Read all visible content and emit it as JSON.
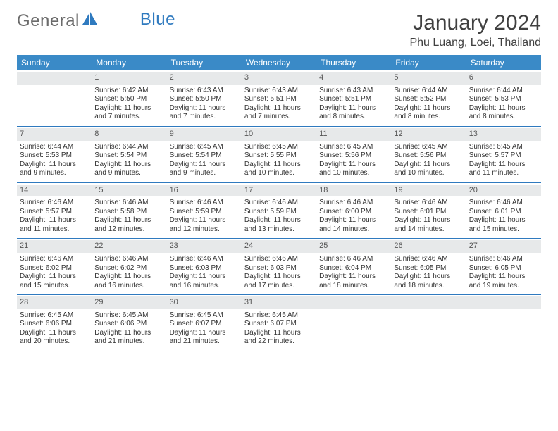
{
  "brand": {
    "part1": "General",
    "part2": "Blue"
  },
  "title": "January 2024",
  "location": "Phu Luang, Loei, Thailand",
  "colors": {
    "header_bg": "#3a8ac7",
    "rule": "#2f7abf",
    "daynum_bg": "#e7e9ea",
    "text": "#333333",
    "logo_gray": "#6b6b6b",
    "logo_blue": "#2f7abf"
  },
  "daysOfWeek": [
    "Sunday",
    "Monday",
    "Tuesday",
    "Wednesday",
    "Thursday",
    "Friday",
    "Saturday"
  ],
  "weeks": [
    [
      {
        "n": "",
        "sunrise": "",
        "sunset": "",
        "daylight": ""
      },
      {
        "n": "1",
        "sunrise": "Sunrise: 6:42 AM",
        "sunset": "Sunset: 5:50 PM",
        "daylight": "Daylight: 11 hours and 7 minutes."
      },
      {
        "n": "2",
        "sunrise": "Sunrise: 6:43 AM",
        "sunset": "Sunset: 5:50 PM",
        "daylight": "Daylight: 11 hours and 7 minutes."
      },
      {
        "n": "3",
        "sunrise": "Sunrise: 6:43 AM",
        "sunset": "Sunset: 5:51 PM",
        "daylight": "Daylight: 11 hours and 7 minutes."
      },
      {
        "n": "4",
        "sunrise": "Sunrise: 6:43 AM",
        "sunset": "Sunset: 5:51 PM",
        "daylight": "Daylight: 11 hours and 8 minutes."
      },
      {
        "n": "5",
        "sunrise": "Sunrise: 6:44 AM",
        "sunset": "Sunset: 5:52 PM",
        "daylight": "Daylight: 11 hours and 8 minutes."
      },
      {
        "n": "6",
        "sunrise": "Sunrise: 6:44 AM",
        "sunset": "Sunset: 5:53 PM",
        "daylight": "Daylight: 11 hours and 8 minutes."
      }
    ],
    [
      {
        "n": "7",
        "sunrise": "Sunrise: 6:44 AM",
        "sunset": "Sunset: 5:53 PM",
        "daylight": "Daylight: 11 hours and 9 minutes."
      },
      {
        "n": "8",
        "sunrise": "Sunrise: 6:44 AM",
        "sunset": "Sunset: 5:54 PM",
        "daylight": "Daylight: 11 hours and 9 minutes."
      },
      {
        "n": "9",
        "sunrise": "Sunrise: 6:45 AM",
        "sunset": "Sunset: 5:54 PM",
        "daylight": "Daylight: 11 hours and 9 minutes."
      },
      {
        "n": "10",
        "sunrise": "Sunrise: 6:45 AM",
        "sunset": "Sunset: 5:55 PM",
        "daylight": "Daylight: 11 hours and 10 minutes."
      },
      {
        "n": "11",
        "sunrise": "Sunrise: 6:45 AM",
        "sunset": "Sunset: 5:56 PM",
        "daylight": "Daylight: 11 hours and 10 minutes."
      },
      {
        "n": "12",
        "sunrise": "Sunrise: 6:45 AM",
        "sunset": "Sunset: 5:56 PM",
        "daylight": "Daylight: 11 hours and 10 minutes."
      },
      {
        "n": "13",
        "sunrise": "Sunrise: 6:45 AM",
        "sunset": "Sunset: 5:57 PM",
        "daylight": "Daylight: 11 hours and 11 minutes."
      }
    ],
    [
      {
        "n": "14",
        "sunrise": "Sunrise: 6:46 AM",
        "sunset": "Sunset: 5:57 PM",
        "daylight": "Daylight: 11 hours and 11 minutes."
      },
      {
        "n": "15",
        "sunrise": "Sunrise: 6:46 AM",
        "sunset": "Sunset: 5:58 PM",
        "daylight": "Daylight: 11 hours and 12 minutes."
      },
      {
        "n": "16",
        "sunrise": "Sunrise: 6:46 AM",
        "sunset": "Sunset: 5:59 PM",
        "daylight": "Daylight: 11 hours and 12 minutes."
      },
      {
        "n": "17",
        "sunrise": "Sunrise: 6:46 AM",
        "sunset": "Sunset: 5:59 PM",
        "daylight": "Daylight: 11 hours and 13 minutes."
      },
      {
        "n": "18",
        "sunrise": "Sunrise: 6:46 AM",
        "sunset": "Sunset: 6:00 PM",
        "daylight": "Daylight: 11 hours and 14 minutes."
      },
      {
        "n": "19",
        "sunrise": "Sunrise: 6:46 AM",
        "sunset": "Sunset: 6:01 PM",
        "daylight": "Daylight: 11 hours and 14 minutes."
      },
      {
        "n": "20",
        "sunrise": "Sunrise: 6:46 AM",
        "sunset": "Sunset: 6:01 PM",
        "daylight": "Daylight: 11 hours and 15 minutes."
      }
    ],
    [
      {
        "n": "21",
        "sunrise": "Sunrise: 6:46 AM",
        "sunset": "Sunset: 6:02 PM",
        "daylight": "Daylight: 11 hours and 15 minutes."
      },
      {
        "n": "22",
        "sunrise": "Sunrise: 6:46 AM",
        "sunset": "Sunset: 6:02 PM",
        "daylight": "Daylight: 11 hours and 16 minutes."
      },
      {
        "n": "23",
        "sunrise": "Sunrise: 6:46 AM",
        "sunset": "Sunset: 6:03 PM",
        "daylight": "Daylight: 11 hours and 16 minutes."
      },
      {
        "n": "24",
        "sunrise": "Sunrise: 6:46 AM",
        "sunset": "Sunset: 6:03 PM",
        "daylight": "Daylight: 11 hours and 17 minutes."
      },
      {
        "n": "25",
        "sunrise": "Sunrise: 6:46 AM",
        "sunset": "Sunset: 6:04 PM",
        "daylight": "Daylight: 11 hours and 18 minutes."
      },
      {
        "n": "26",
        "sunrise": "Sunrise: 6:46 AM",
        "sunset": "Sunset: 6:05 PM",
        "daylight": "Daylight: 11 hours and 18 minutes."
      },
      {
        "n": "27",
        "sunrise": "Sunrise: 6:46 AM",
        "sunset": "Sunset: 6:05 PM",
        "daylight": "Daylight: 11 hours and 19 minutes."
      }
    ],
    [
      {
        "n": "28",
        "sunrise": "Sunrise: 6:45 AM",
        "sunset": "Sunset: 6:06 PM",
        "daylight": "Daylight: 11 hours and 20 minutes."
      },
      {
        "n": "29",
        "sunrise": "Sunrise: 6:45 AM",
        "sunset": "Sunset: 6:06 PM",
        "daylight": "Daylight: 11 hours and 21 minutes."
      },
      {
        "n": "30",
        "sunrise": "Sunrise: 6:45 AM",
        "sunset": "Sunset: 6:07 PM",
        "daylight": "Daylight: 11 hours and 21 minutes."
      },
      {
        "n": "31",
        "sunrise": "Sunrise: 6:45 AM",
        "sunset": "Sunset: 6:07 PM",
        "daylight": "Daylight: 11 hours and 22 minutes."
      },
      {
        "n": "",
        "sunrise": "",
        "sunset": "",
        "daylight": ""
      },
      {
        "n": "",
        "sunrise": "",
        "sunset": "",
        "daylight": ""
      },
      {
        "n": "",
        "sunrise": "",
        "sunset": "",
        "daylight": ""
      }
    ]
  ]
}
